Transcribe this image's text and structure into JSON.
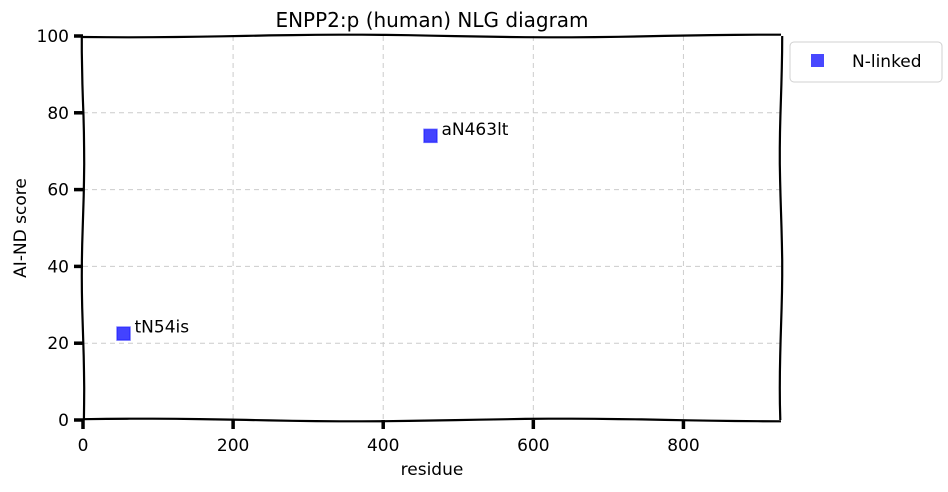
{
  "chart_data": {
    "type": "scatter",
    "title": "ENPP2:p (human) NLG diagram",
    "xlabel": "residue",
    "ylabel": "AI-ND score",
    "xlim": [
      0,
      930
    ],
    "ylim": [
      0,
      100
    ],
    "xticks": [
      0,
      200,
      400,
      600,
      800
    ],
    "yticks": [
      0,
      20,
      40,
      60,
      80,
      100
    ],
    "grid": true,
    "legend_position": "outside-top-right",
    "series": [
      {
        "name": "N-linked",
        "color": "#1a1aff",
        "marker": "square",
        "points": [
          {
            "x": 54,
            "y": 22.5,
            "label": "tN54is"
          },
          {
            "x": 463,
            "y": 74,
            "label": "aN463lt"
          }
        ]
      }
    ]
  }
}
